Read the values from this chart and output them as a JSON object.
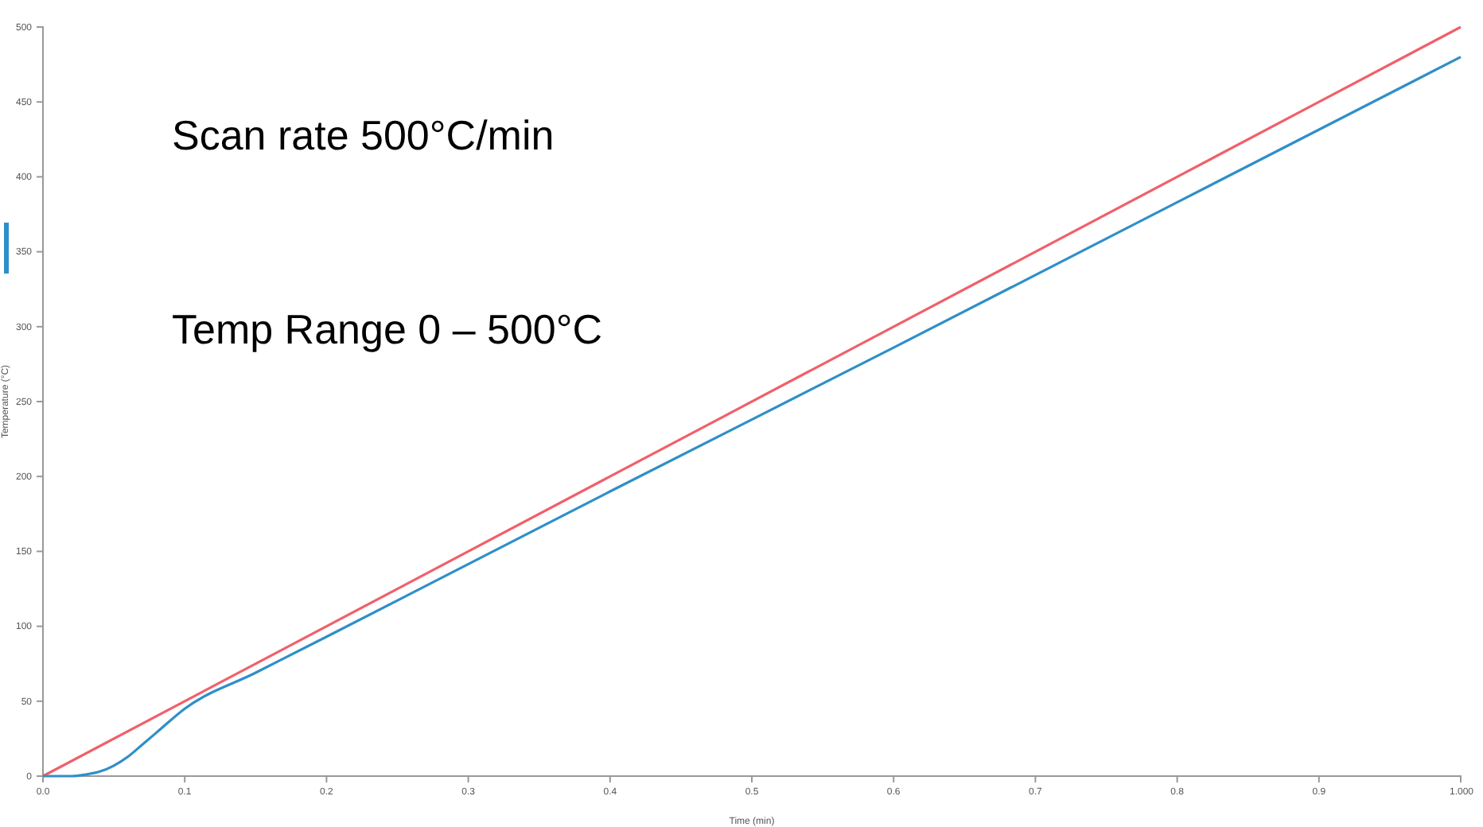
{
  "chart_data": {
    "type": "line",
    "xlabel": "Time (min)",
    "ylabel": "Temperature (°C)",
    "annotations": [
      "Scan rate 500°C/min",
      "Temp Range 0 – 500°C"
    ],
    "xlim": [
      0,
      1
    ],
    "xticks": [
      {
        "value": 0,
        "label": "0.0"
      },
      0.1,
      0.2,
      0.3,
      0.4,
      0.5,
      0.6,
      0.7,
      0.8,
      0.9,
      {
        "value": 1,
        "label": "1.000"
      }
    ],
    "ylim": [
      0,
      500
    ],
    "yticks": [
      0,
      50,
      100,
      150,
      200,
      250,
      300,
      350,
      400,
      450,
      500
    ],
    "grid": false,
    "marker": "none",
    "line_style": "solid",
    "series": [
      {
        "color": "#f0606a",
        "x": [
          0,
          0.2,
          0.4,
          0.6,
          0.8,
          1.0
        ],
        "values": [
          0,
          100,
          200,
          300,
          400,
          500
        ]
      },
      {
        "color": "#2f8fc8",
        "x": [
          0,
          0.02,
          0.03,
          0.04,
          0.05,
          0.06,
          0.07,
          0.08,
          0.1,
          0.15,
          0.2,
          0.4,
          0.6,
          0.8,
          1.0
        ],
        "values": [
          0,
          0,
          1,
          3,
          7,
          13,
          21,
          29,
          45,
          69,
          93,
          190,
          286,
          383,
          480
        ]
      }
    ]
  }
}
